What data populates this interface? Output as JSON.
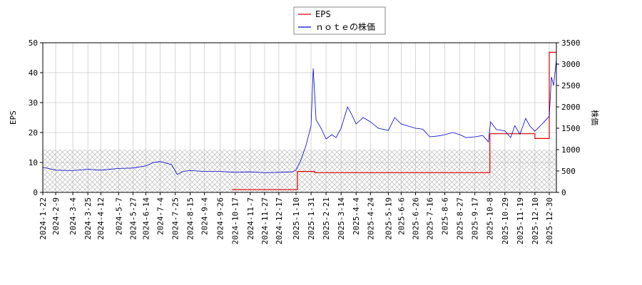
{
  "chart_data": {
    "type": "line",
    "title": "",
    "xlabel": "",
    "ylabel_left": "EPS",
    "ylabel_right": "株価",
    "ylim_left": [
      0,
      50
    ],
    "ylim_right": [
      0,
      3500
    ],
    "yticks_left": [
      "0",
      "10",
      "20",
      "30",
      "40",
      "50"
    ],
    "yticks_right": [
      "0",
      "500",
      "1000",
      "1500",
      "2000",
      "2500",
      "3000",
      "3500"
    ],
    "x_range": [
      "2024-01-22",
      "2026-01-09"
    ],
    "xticks": [
      "2024-1-22",
      "2024-2-9",
      "2024-3-4",
      "2024-3-25",
      "2024-4-12",
      "2024-5-7",
      "2024-5-27",
      "2024-6-14",
      "2024-7-4",
      "2024-7-25",
      "2024-8-15",
      "2024-9-4",
      "2024-9-26",
      "2024-10-17",
      "2024-11-7",
      "2024-11-27",
      "2024-12-17",
      "2025-1-10",
      "2025-1-31",
      "2025-2-21",
      "2025-3-14",
      "2025-4-4",
      "2025-4-24",
      "2025-5-19",
      "2025-6-6",
      "2025-6-26",
      "2025-7-16",
      "2025-8-6",
      "2025-8-27",
      "2025-9-17",
      "2025-10-8",
      "2025-10-29",
      "2025-11-19",
      "2025-12-10",
      "2025-12-30"
    ],
    "grid": true,
    "hatch_band_right": [
      0,
      1000
    ],
    "legend_position": "top-center",
    "series": [
      {
        "name": "EPS",
        "axis": "left",
        "color": "#dd0000",
        "step": true,
        "points": [
          [
            "2024-10-12",
            0.9
          ],
          [
            "2025-01-12",
            7.0
          ],
          [
            "2025-02-05",
            6.6
          ],
          [
            "2025-10-08",
            19.6
          ],
          [
            "2025-12-10",
            18.0
          ],
          [
            "2025-12-30",
            46.8
          ],
          [
            "2026-01-09",
            46.8
          ]
        ]
      },
      {
        "name": "ｎｏｔｅの株価",
        "axis": "right",
        "color": "#0000cc",
        "points": [
          [
            "2024-01-22",
            590
          ],
          [
            "2024-02-09",
            520
          ],
          [
            "2024-03-04",
            510
          ],
          [
            "2024-03-25",
            540
          ],
          [
            "2024-04-12",
            520
          ],
          [
            "2024-05-07",
            560
          ],
          [
            "2024-05-27",
            570
          ],
          [
            "2024-06-14",
            620
          ],
          [
            "2024-06-25",
            700
          ],
          [
            "2024-07-04",
            720
          ],
          [
            "2024-07-20",
            650
          ],
          [
            "2024-07-28",
            420
          ],
          [
            "2024-08-05",
            490
          ],
          [
            "2024-08-15",
            510
          ],
          [
            "2024-09-04",
            490
          ],
          [
            "2024-09-26",
            490
          ],
          [
            "2024-10-17",
            470
          ],
          [
            "2024-11-07",
            480
          ],
          [
            "2024-11-27",
            460
          ],
          [
            "2024-12-17",
            470
          ],
          [
            "2025-01-05",
            480
          ],
          [
            "2025-01-10",
            520
          ],
          [
            "2025-01-17",
            760
          ],
          [
            "2025-01-24",
            1100
          ],
          [
            "2025-01-31",
            1550
          ],
          [
            "2025-02-03",
            2900
          ],
          [
            "2025-02-07",
            1700
          ],
          [
            "2025-02-14",
            1500
          ],
          [
            "2025-02-21",
            1250
          ],
          [
            "2025-03-01",
            1350
          ],
          [
            "2025-03-07",
            1280
          ],
          [
            "2025-03-14",
            1500
          ],
          [
            "2025-03-23",
            2000
          ],
          [
            "2025-03-28",
            1850
          ],
          [
            "2025-04-04",
            1600
          ],
          [
            "2025-04-14",
            1750
          ],
          [
            "2025-04-24",
            1650
          ],
          [
            "2025-05-05",
            1500
          ],
          [
            "2025-05-19",
            1450
          ],
          [
            "2025-05-28",
            1750
          ],
          [
            "2025-06-06",
            1600
          ],
          [
            "2025-06-16",
            1550
          ],
          [
            "2025-06-26",
            1500
          ],
          [
            "2025-07-06",
            1480
          ],
          [
            "2025-07-16",
            1300
          ],
          [
            "2025-07-28",
            1320
          ],
          [
            "2025-08-06",
            1350
          ],
          [
            "2025-08-17",
            1400
          ],
          [
            "2025-08-27",
            1350
          ],
          [
            "2025-09-05",
            1280
          ],
          [
            "2025-09-17",
            1300
          ],
          [
            "2025-09-28",
            1330
          ],
          [
            "2025-10-06",
            1180
          ],
          [
            "2025-10-09",
            1650
          ],
          [
            "2025-10-17",
            1470
          ],
          [
            "2025-10-29",
            1440
          ],
          [
            "2025-11-06",
            1280
          ],
          [
            "2025-11-12",
            1560
          ],
          [
            "2025-11-19",
            1360
          ],
          [
            "2025-11-27",
            1730
          ],
          [
            "2025-12-03",
            1550
          ],
          [
            "2025-12-10",
            1430
          ],
          [
            "2025-12-20",
            1600
          ],
          [
            "2025-12-30",
            1780
          ],
          [
            "2026-01-02",
            2700
          ],
          [
            "2026-01-05",
            2500
          ],
          [
            "2026-01-09",
            3100
          ]
        ]
      }
    ]
  }
}
